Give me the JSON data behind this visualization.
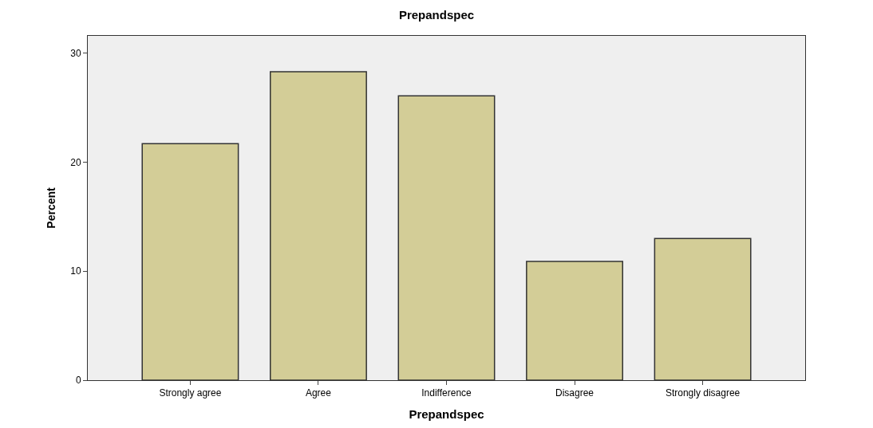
{
  "chart_data": {
    "type": "bar",
    "title": "Prepandspec",
    "xlabel": "Prepandspec",
    "ylabel": "Percent",
    "categories": [
      "Strongly agree",
      "Agree",
      "Indifference",
      "Disagree",
      "Strongly disagree"
    ],
    "values": [
      21.7,
      28.3,
      26.1,
      10.9,
      13.0
    ],
    "color": "#d3cd97",
    "ylim": [
      0,
      31.6
    ],
    "yticks": [
      0,
      10,
      20,
      30
    ]
  }
}
